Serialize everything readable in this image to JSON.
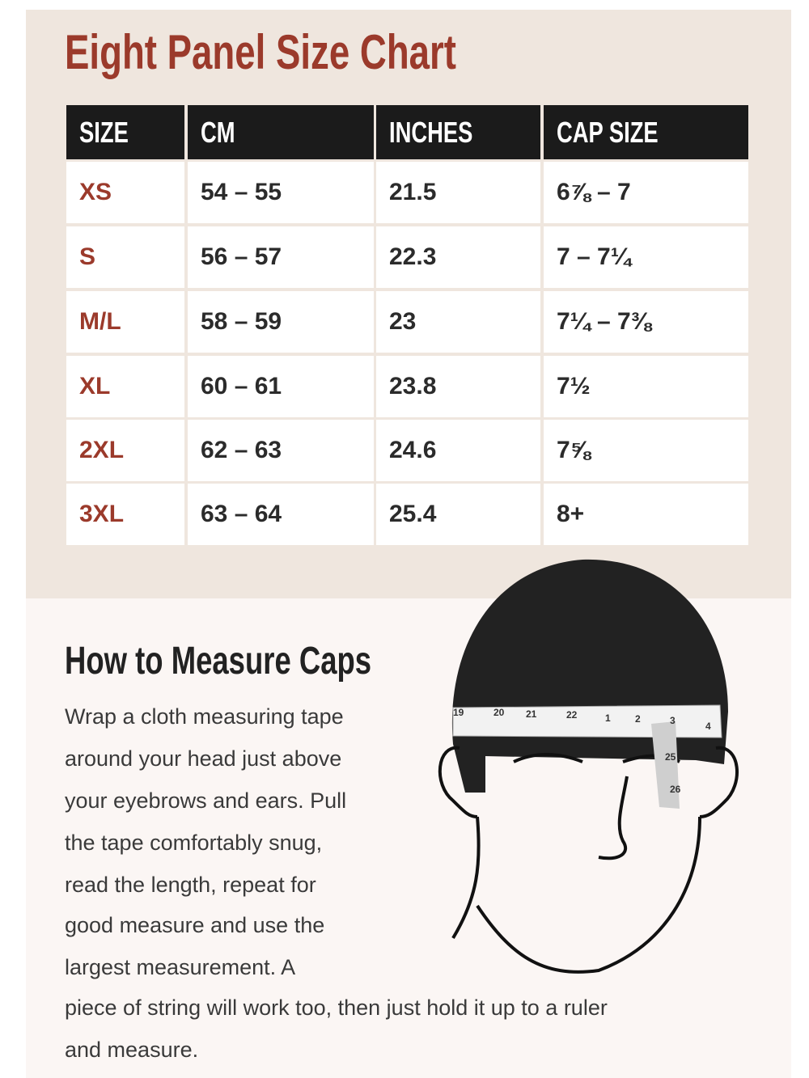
{
  "header": {
    "title": "Eight Panel Size Chart"
  },
  "table": {
    "columns": [
      "SIZE",
      "CM",
      "INCHES",
      "CAP SIZE"
    ],
    "rows": [
      [
        "XS",
        "54 – 55",
        "21.5",
        "6⅞ – 7"
      ],
      [
        "S",
        "56 – 57",
        "22.3",
        "7 – 7¼"
      ],
      [
        "M/L",
        "58 – 59",
        "23",
        "7¼ – 7⅜"
      ],
      [
        "XL",
        "60 – 61",
        "23.8",
        "7½"
      ],
      [
        "2XL",
        "62 – 63",
        "24.6",
        "7⅝"
      ],
      [
        "3XL",
        "63 – 64",
        "25.4",
        "8+"
      ]
    ]
  },
  "guide": {
    "heading": "How to Measure Caps",
    "lines": [
      "Wrap a cloth measuring tape",
      "around your head just above",
      "your eyebrows and ears. Pull",
      "the tape comfortably snug,",
      "read the length, repeat for",
      "good measure and use the",
      "largest measurement. A",
      "piece of string will work too, then just hold it up to a ruler",
      "and measure."
    ]
  },
  "illustration": {
    "tape_labels": [
      "19",
      "20",
      "21",
      "22",
      "1",
      "2",
      "3",
      "4",
      "25",
      "26"
    ]
  }
}
